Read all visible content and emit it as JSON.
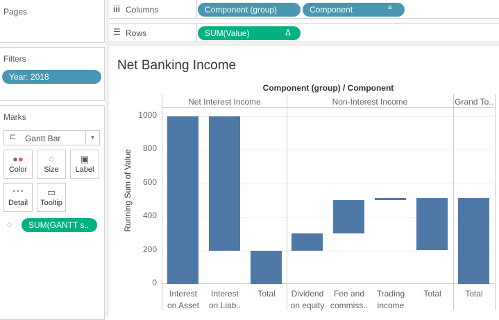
{
  "pages": {
    "title": "Pages"
  },
  "filters": {
    "title": "Filters",
    "items": [
      {
        "label": "Year: 2018"
      }
    ]
  },
  "marks": {
    "title": "Marks",
    "type": "Gantt Bar",
    "buttons": [
      {
        "label": "Color",
        "icon": "color-dots-icon"
      },
      {
        "label": "Size",
        "icon": "size-icon"
      },
      {
        "label": "Label",
        "icon": "label-icon"
      },
      {
        "label": "Detail",
        "icon": "detail-icon"
      },
      {
        "label": "Tooltip",
        "icon": "tooltip-icon"
      }
    ],
    "size_pill": "SUM(GANTT s.."
  },
  "columns": {
    "label": "Columns",
    "pills": [
      "Component (group)",
      "Component"
    ]
  },
  "rows": {
    "label": "Rows",
    "pills": [
      "SUM(Value)"
    ]
  },
  "colors": {
    "bar": "#4e79a7",
    "dimension_pill": "#4996b2",
    "measure_pill": "#00b180"
  },
  "chart_data": {
    "type": "bar",
    "subtype": "gantt-waterfall",
    "title": "Net Banking Income",
    "column_header_title": "Component (group) / Component",
    "ylabel": "Running Sum of Value",
    "ylim": [
      -40,
      1100
    ],
    "yticks": [
      "0",
      "200",
      "400",
      "600",
      "800",
      "1000"
    ],
    "groups": [
      {
        "name": "Net Interest Income",
        "categories": [
          {
            "label": [
              "Interest",
              "on Asset"
            ],
            "start": 0,
            "end": 1000
          },
          {
            "label": [
              "Interest",
              "on Liab.."
            ],
            "start": 200,
            "end": 1000
          },
          {
            "label": [
              "Total",
              ""
            ],
            "start": 0,
            "end": 200
          }
        ]
      },
      {
        "name": "Non-Interest Income",
        "categories": [
          {
            "label": [
              "Dividend",
              "on equity"
            ],
            "start": 200,
            "end": 300
          },
          {
            "label": [
              "Fee and",
              "commiss.."
            ],
            "start": 300,
            "end": 500
          },
          {
            "label": [
              "Trading",
              "income"
            ],
            "start": 500,
            "end": 510
          },
          {
            "label": [
              "Total",
              ""
            ],
            "start": 200,
            "end": 510
          }
        ]
      },
      {
        "name": "Grand To..",
        "categories": [
          {
            "label": [
              "Total",
              ""
            ],
            "start": 0,
            "end": 510
          }
        ]
      }
    ]
  }
}
